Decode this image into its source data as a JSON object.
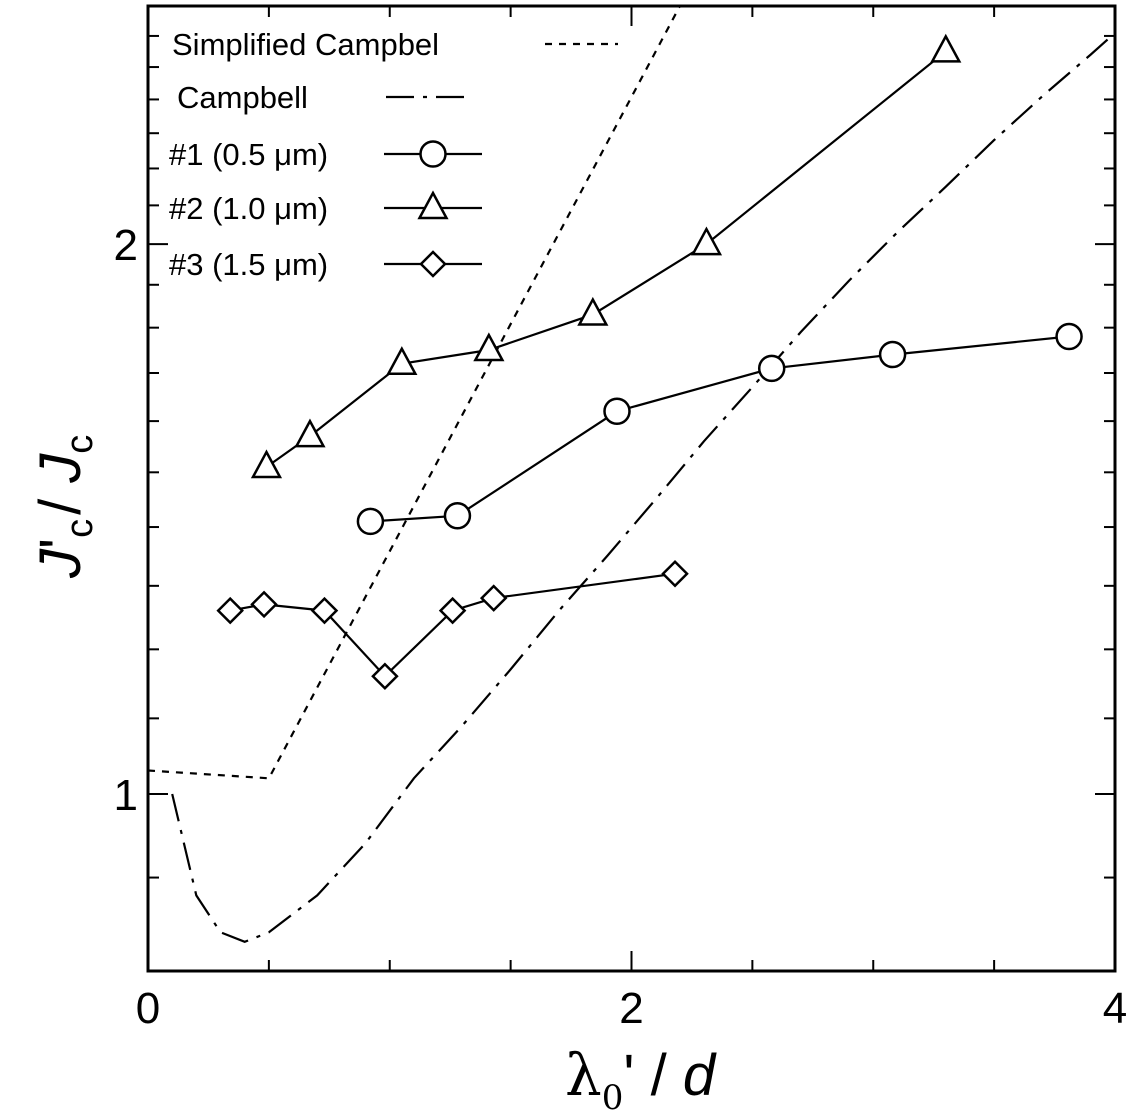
{
  "chart_data": {
    "type": "line",
    "xlabel_parts": {
      "lambda": "λ",
      "sub": "0",
      "prime": "'",
      "slash": " / ",
      "d": "d"
    },
    "ylabel_parts": {
      "j1": "J",
      "prime": "'",
      "sub1": "c",
      "slash": "/ ",
      "j2": "J",
      "sub2": "c"
    },
    "xlim": [
      0,
      4
    ],
    "ylim": [
      0.8,
      2.7
    ],
    "x_ticks": [
      0,
      2,
      4
    ],
    "x_minor_step": 0.5,
    "y_ticks": [
      1,
      2
    ],
    "y_minor_step": 0.1,
    "grid": false,
    "legend_position": "top-left",
    "series": [
      {
        "name": "Simplified Campbel",
        "style": "dashed",
        "marker": "none",
        "x": [
          0,
          0.5,
          2.2
        ],
        "y": [
          1.03,
          1.02,
          2.7
        ]
      },
      {
        "name": "Campbell",
        "style": "dashdot",
        "marker": "none",
        "x": [
          0.1,
          0.2,
          0.3,
          0.4,
          0.5,
          0.7,
          0.9,
          1.1,
          1.3,
          1.5,
          1.7,
          1.9,
          2.1,
          2.3,
          2.5,
          2.7,
          2.9,
          3.1,
          3.3,
          3.5,
          3.7,
          3.9,
          4.0
        ],
        "y": [
          1.0,
          0.88,
          0.84,
          0.83,
          0.84,
          0.88,
          0.94,
          1.02,
          1.09,
          1.17,
          1.26,
          1.35,
          1.45,
          1.56,
          1.67,
          1.79,
          1.91,
          2.03,
          2.15,
          2.28,
          2.41,
          2.54,
          2.61
        ]
      },
      {
        "name": "#1 (0.5 μm)",
        "style": "solid",
        "marker": "circle",
        "x": [
          0.92,
          1.28,
          1.94,
          2.58,
          3.08,
          3.81
        ],
        "y": [
          1.41,
          1.42,
          1.62,
          1.71,
          1.74,
          1.78
        ]
      },
      {
        "name": "#2 (1.0 μm)",
        "style": "solid",
        "marker": "triangle",
        "x": [
          0.49,
          0.67,
          1.05,
          1.41,
          1.84,
          2.31,
          3.3
        ],
        "y": [
          1.51,
          1.57,
          1.72,
          1.75,
          1.83,
          2.0,
          2.55
        ]
      },
      {
        "name": "#3 (1.5 μm)",
        "style": "solid",
        "marker": "diamond",
        "x": [
          0.34,
          0.48,
          0.73,
          0.98,
          1.26,
          1.43,
          2.18
        ],
        "y": [
          1.26,
          1.27,
          1.26,
          1.16,
          1.26,
          1.28,
          1.32
        ]
      }
    ]
  }
}
